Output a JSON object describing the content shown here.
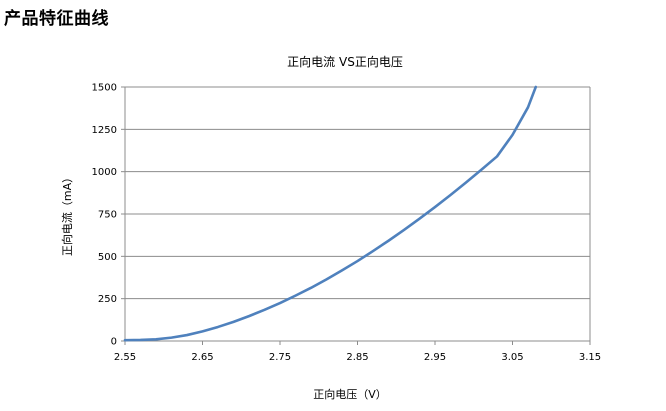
{
  "section_heading": "产品特征曲线",
  "chart_data": {
    "type": "line",
    "title": "正向电流 VS正向电压",
    "xlabel": "正向电压（V）",
    "ylabel": "正向电流（mA）",
    "xlim": [
      2.55,
      3.15
    ],
    "ylim": [
      0,
      1500
    ],
    "x_ticks": [
      "2.55",
      "2.65",
      "2.75",
      "2.85",
      "2.95",
      "3.05",
      "3.15"
    ],
    "y_ticks": [
      "0",
      "250",
      "500",
      "750",
      "1000",
      "1250",
      "1500"
    ],
    "grid": "horizontal",
    "legend": "none",
    "series": [
      {
        "color": "#4f81bd",
        "x": [
          2.55,
          2.57,
          2.59,
          2.61,
          2.63,
          2.65,
          2.67,
          2.69,
          2.71,
          2.73,
          2.75,
          2.77,
          2.79,
          2.81,
          2.83,
          2.85,
          2.87,
          2.89,
          2.91,
          2.93,
          2.95,
          2.97,
          2.99,
          3.01,
          3.03,
          3.05,
          3.07,
          3.08
        ],
        "y": [
          5,
          6,
          10,
          20,
          35,
          57,
          83,
          113,
          147,
          184,
          224,
          268,
          314,
          364,
          417,
          472,
          531,
          592,
          656,
          722,
          791,
          862,
          936,
          1012,
          1090,
          1217,
          1380,
          1500
        ]
      }
    ]
  }
}
